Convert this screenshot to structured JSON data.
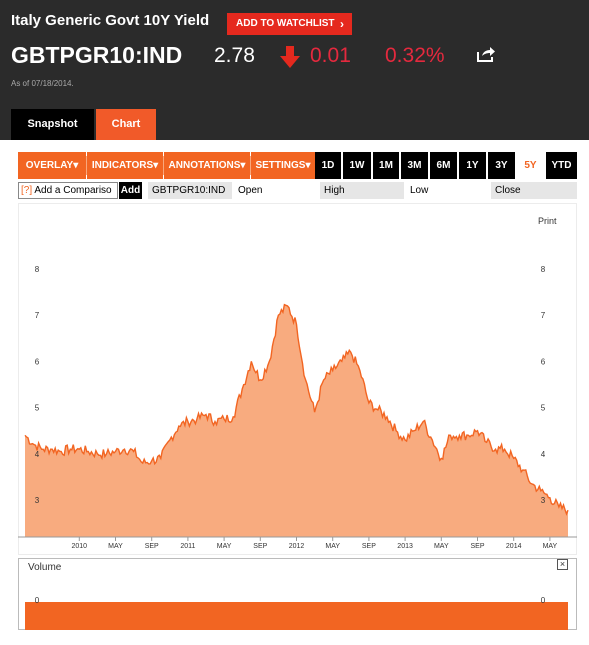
{
  "header": {
    "title": "Italy Generic Govt 10Y Yield",
    "watchlist_label": "ADD TO WATCHLIST",
    "ticker": "GBTPGR10:IND",
    "price": "2.78",
    "change": "0.01",
    "change_pct": "0.32%",
    "as_of": "As of 07/18/2014.",
    "down_color": "#e5293e",
    "share_icon": "share-icon"
  },
  "tabs": [
    {
      "label": "Snapshot",
      "active": false
    },
    {
      "label": "Chart",
      "active": true
    }
  ],
  "toolbar": {
    "menus": [
      "OVERLAY",
      "INDICATORS",
      "ANNOTATIONS",
      "SETTINGS"
    ],
    "ranges": [
      "1D",
      "1W",
      "1M",
      "3M",
      "6M",
      "1Y",
      "3Y",
      "5Y",
      "YTD"
    ],
    "active_range": "5Y",
    "accent": "#f26522"
  },
  "inforow": {
    "compare_prefix": "[?]",
    "compare_placeholder": "Add a Compariso",
    "add_label": "Add",
    "ticker": "GBTPGR10:IND",
    "open": "Open",
    "high": "High",
    "low": "Low",
    "close": "Close"
  },
  "chart": {
    "print_label": "Print",
    "volume_label": "Volume",
    "close_glyph": "×"
  },
  "chart_data": {
    "type": "area",
    "color": "#f26522",
    "fill": "#f8ab7f",
    "ylim": [
      2.2,
      8.8
    ],
    "yticks": [
      3,
      4,
      5,
      6,
      7,
      8
    ],
    "x_range": [
      "2009-07",
      "2014-07"
    ],
    "x_tick_labels": [
      "2010",
      "MAY",
      "SEP",
      "2011",
      "MAY",
      "SEP",
      "2012",
      "MAY",
      "SEP",
      "2013",
      "MAY",
      "SEP",
      "2014",
      "MAY"
    ],
    "points": [
      {
        "t": "2009-07",
        "v": 4.4
      },
      {
        "t": "2009-08",
        "v": 4.2
      },
      {
        "t": "2009-09",
        "v": 4.1
      },
      {
        "t": "2009-10",
        "v": 4.1
      },
      {
        "t": "2009-11",
        "v": 4.05
      },
      {
        "t": "2009-12",
        "v": 4.1
      },
      {
        "t": "2010-01",
        "v": 4.1
      },
      {
        "t": "2010-02",
        "v": 4.05
      },
      {
        "t": "2010-03",
        "v": 4.0
      },
      {
        "t": "2010-04",
        "v": 4.0
      },
      {
        "t": "2010-05",
        "v": 4.05
      },
      {
        "t": "2010-06",
        "v": 4.1
      },
      {
        "t": "2010-07",
        "v": 4.05
      },
      {
        "t": "2010-08",
        "v": 3.8
      },
      {
        "t": "2010-09",
        "v": 3.85
      },
      {
        "t": "2010-10",
        "v": 3.9
      },
      {
        "t": "2010-11",
        "v": 4.3
      },
      {
        "t": "2010-12",
        "v": 4.6
      },
      {
        "t": "2011-01",
        "v": 4.7
      },
      {
        "t": "2011-02",
        "v": 4.75
      },
      {
        "t": "2011-03",
        "v": 4.85
      },
      {
        "t": "2011-04",
        "v": 4.7
      },
      {
        "t": "2011-05",
        "v": 4.75
      },
      {
        "t": "2011-06",
        "v": 4.8
      },
      {
        "t": "2011-07",
        "v": 5.4
      },
      {
        "t": "2011-08",
        "v": 6.0
      },
      {
        "t": "2011-09",
        "v": 5.6
      },
      {
        "t": "2011-10",
        "v": 6.0
      },
      {
        "t": "2011-11",
        "v": 7.0
      },
      {
        "t": "2011-12",
        "v": 7.2
      },
      {
        "t": "2012-01",
        "v": 6.8
      },
      {
        "t": "2012-02",
        "v": 5.6
      },
      {
        "t": "2012-03",
        "v": 4.9
      },
      {
        "t": "2012-04",
        "v": 5.6
      },
      {
        "t": "2012-05",
        "v": 5.8
      },
      {
        "t": "2012-06",
        "v": 6.0
      },
      {
        "t": "2012-07",
        "v": 6.2
      },
      {
        "t": "2012-08",
        "v": 5.8
      },
      {
        "t": "2012-09",
        "v": 5.1
      },
      {
        "t": "2012-10",
        "v": 4.95
      },
      {
        "t": "2012-11",
        "v": 4.8
      },
      {
        "t": "2012-12",
        "v": 4.5
      },
      {
        "t": "2013-01",
        "v": 4.3
      },
      {
        "t": "2013-02",
        "v": 4.5
      },
      {
        "t": "2013-03",
        "v": 4.7
      },
      {
        "t": "2013-04",
        "v": 4.3
      },
      {
        "t": "2013-05",
        "v": 3.9
      },
      {
        "t": "2013-06",
        "v": 4.4
      },
      {
        "t": "2013-07",
        "v": 4.4
      },
      {
        "t": "2013-08",
        "v": 4.4
      },
      {
        "t": "2013-09",
        "v": 4.5
      },
      {
        "t": "2013-10",
        "v": 4.25
      },
      {
        "t": "2013-11",
        "v": 4.1
      },
      {
        "t": "2013-12",
        "v": 4.1
      },
      {
        "t": "2014-01",
        "v": 3.9
      },
      {
        "t": "2014-02",
        "v": 3.65
      },
      {
        "t": "2014-03",
        "v": 3.35
      },
      {
        "t": "2014-04",
        "v": 3.2
      },
      {
        "t": "2014-05",
        "v": 3.05
      },
      {
        "t": "2014-06",
        "v": 2.85
      },
      {
        "t": "2014-07",
        "v": 2.78
      }
    ],
    "volume": {
      "yticks": [
        0
      ],
      "values": "0 (flat bar across full range)"
    },
    "grid": "none",
    "legend": "none"
  }
}
